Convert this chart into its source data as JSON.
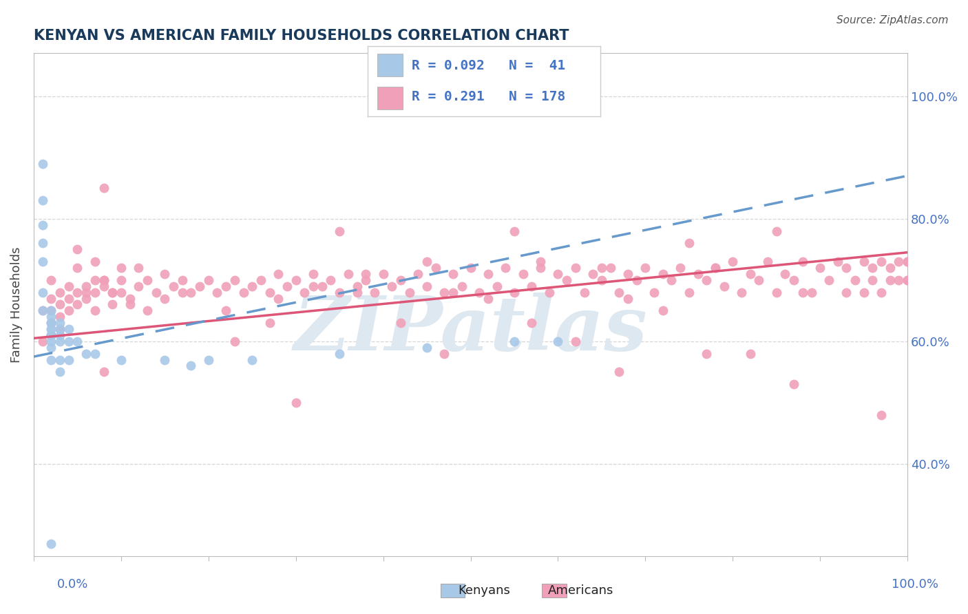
{
  "title": "KENYAN VS AMERICAN FAMILY HOUSEHOLDS CORRELATION CHART",
  "source": "Source: ZipAtlas.com",
  "ylabel": "Family Households",
  "ylabel_right_ticks": [
    "40.0%",
    "60.0%",
    "80.0%",
    "100.0%"
  ],
  "ylabel_right_vals": [
    0.4,
    0.6,
    0.8,
    1.0
  ],
  "kenyan_color": "#a8c8e8",
  "american_color": "#f0a0b8",
  "kenyan_line_color": "#6699cc",
  "kenyan_line_dash_color": "#99bbdd",
  "american_line_color": "#dd5577",
  "background_color": "#ffffff",
  "watermark_color": "#dde8f0",
  "grid_color": "#cccccc",
  "title_color": "#1a3a5c",
  "tick_color_blue": "#4472c4",
  "legend_text_color": "#4472c4",
  "legend_label_color": "#222222",
  "xlim": [
    0.0,
    1.0
  ],
  "ylim": [
    0.25,
    1.07
  ],
  "kenyan_x": [
    0.01,
    0.01,
    0.01,
    0.01,
    0.01,
    0.01,
    0.01,
    0.02,
    0.02,
    0.02,
    0.02,
    0.02,
    0.02,
    0.02,
    0.02,
    0.02,
    0.02,
    0.02,
    0.02,
    0.03,
    0.03,
    0.03,
    0.03,
    0.03,
    0.03,
    0.04,
    0.04,
    0.04,
    0.05,
    0.06,
    0.07,
    0.1,
    0.15,
    0.18,
    0.2,
    0.25,
    0.35,
    0.45,
    0.55,
    0.6,
    0.02
  ],
  "kenyan_y": [
    0.89,
    0.83,
    0.79,
    0.76,
    0.73,
    0.68,
    0.65,
    0.65,
    0.64,
    0.63,
    0.63,
    0.62,
    0.62,
    0.61,
    0.61,
    0.61,
    0.6,
    0.59,
    0.57,
    0.63,
    0.62,
    0.61,
    0.6,
    0.57,
    0.55,
    0.62,
    0.6,
    0.57,
    0.6,
    0.58,
    0.58,
    0.57,
    0.57,
    0.56,
    0.57,
    0.57,
    0.58,
    0.59,
    0.6,
    0.6,
    0.27
  ],
  "american_x": [
    0.01,
    0.01,
    0.02,
    0.02,
    0.02,
    0.02,
    0.02,
    0.03,
    0.03,
    0.03,
    0.03,
    0.04,
    0.04,
    0.04,
    0.05,
    0.05,
    0.06,
    0.06,
    0.07,
    0.07,
    0.07,
    0.08,
    0.09,
    0.09,
    0.1,
    0.1,
    0.11,
    0.12,
    0.13,
    0.14,
    0.15,
    0.15,
    0.16,
    0.17,
    0.18,
    0.19,
    0.2,
    0.21,
    0.22,
    0.23,
    0.24,
    0.25,
    0.26,
    0.27,
    0.28,
    0.29,
    0.3,
    0.31,
    0.32,
    0.33,
    0.34,
    0.35,
    0.36,
    0.37,
    0.38,
    0.39,
    0.4,
    0.41,
    0.42,
    0.43,
    0.44,
    0.45,
    0.46,
    0.47,
    0.48,
    0.49,
    0.5,
    0.51,
    0.52,
    0.53,
    0.54,
    0.55,
    0.56,
    0.57,
    0.58,
    0.59,
    0.6,
    0.61,
    0.62,
    0.63,
    0.64,
    0.65,
    0.66,
    0.67,
    0.68,
    0.69,
    0.7,
    0.71,
    0.72,
    0.73,
    0.74,
    0.75,
    0.76,
    0.77,
    0.78,
    0.79,
    0.8,
    0.81,
    0.82,
    0.83,
    0.84,
    0.85,
    0.86,
    0.87,
    0.88,
    0.89,
    0.9,
    0.91,
    0.92,
    0.93,
    0.93,
    0.94,
    0.95,
    0.95,
    0.96,
    0.96,
    0.97,
    0.97,
    0.98,
    0.98,
    0.99,
    0.99,
    1.0,
    1.0,
    1.0,
    1.0,
    0.35,
    0.45,
    0.55,
    0.65,
    0.75,
    0.85,
    0.28,
    0.38,
    0.48,
    0.58,
    0.68,
    0.78,
    0.88,
    0.22,
    0.32,
    0.42,
    0.52,
    0.62,
    0.72,
    0.82,
    0.12,
    0.17,
    0.27,
    0.37,
    0.47,
    0.57,
    0.67,
    0.77,
    0.87,
    0.97,
    0.08,
    0.13,
    0.23,
    0.08,
    0.05,
    0.05,
    0.06,
    0.07,
    0.08,
    0.09,
    0.1,
    0.11,
    0.08,
    0.3
  ],
  "american_y": [
    0.65,
    0.6,
    0.7,
    0.67,
    0.65,
    0.63,
    0.61,
    0.68,
    0.66,
    0.64,
    0.62,
    0.69,
    0.67,
    0.65,
    0.68,
    0.66,
    0.69,
    0.67,
    0.7,
    0.68,
    0.65,
    0.69,
    0.68,
    0.66,
    0.7,
    0.68,
    0.67,
    0.69,
    0.7,
    0.68,
    0.67,
    0.71,
    0.69,
    0.7,
    0.68,
    0.69,
    0.7,
    0.68,
    0.69,
    0.7,
    0.68,
    0.69,
    0.7,
    0.68,
    0.71,
    0.69,
    0.7,
    0.68,
    0.71,
    0.69,
    0.7,
    0.68,
    0.71,
    0.69,
    0.7,
    0.68,
    0.71,
    0.69,
    0.7,
    0.68,
    0.71,
    0.69,
    0.72,
    0.68,
    0.71,
    0.69,
    0.72,
    0.68,
    0.71,
    0.69,
    0.72,
    0.68,
    0.71,
    0.69,
    0.72,
    0.68,
    0.71,
    0.7,
    0.72,
    0.68,
    0.71,
    0.7,
    0.72,
    0.68,
    0.71,
    0.7,
    0.72,
    0.68,
    0.71,
    0.7,
    0.72,
    0.68,
    0.71,
    0.7,
    0.72,
    0.69,
    0.73,
    0.68,
    0.71,
    0.7,
    0.73,
    0.68,
    0.71,
    0.7,
    0.73,
    0.68,
    0.72,
    0.7,
    0.73,
    0.68,
    0.72,
    0.7,
    0.73,
    0.68,
    0.72,
    0.7,
    0.73,
    0.68,
    0.72,
    0.7,
    0.73,
    0.7,
    0.73,
    0.7,
    0.73,
    0.7,
    0.78,
    0.73,
    0.78,
    0.72,
    0.76,
    0.78,
    0.67,
    0.71,
    0.68,
    0.73,
    0.67,
    0.72,
    0.68,
    0.65,
    0.69,
    0.63,
    0.67,
    0.6,
    0.65,
    0.58,
    0.72,
    0.68,
    0.63,
    0.68,
    0.58,
    0.63,
    0.55,
    0.58,
    0.53,
    0.48,
    0.7,
    0.65,
    0.6,
    0.85,
    0.75,
    0.72,
    0.68,
    0.73,
    0.7,
    0.68,
    0.72,
    0.66,
    0.55,
    0.5
  ],
  "ken_line_x0": 0.0,
  "ken_line_x1": 1.0,
  "ken_line_y0": 0.575,
  "ken_line_y1": 0.87,
  "amer_line_x0": 0.0,
  "amer_line_x1": 1.0,
  "amer_line_y0": 0.605,
  "amer_line_y1": 0.745
}
